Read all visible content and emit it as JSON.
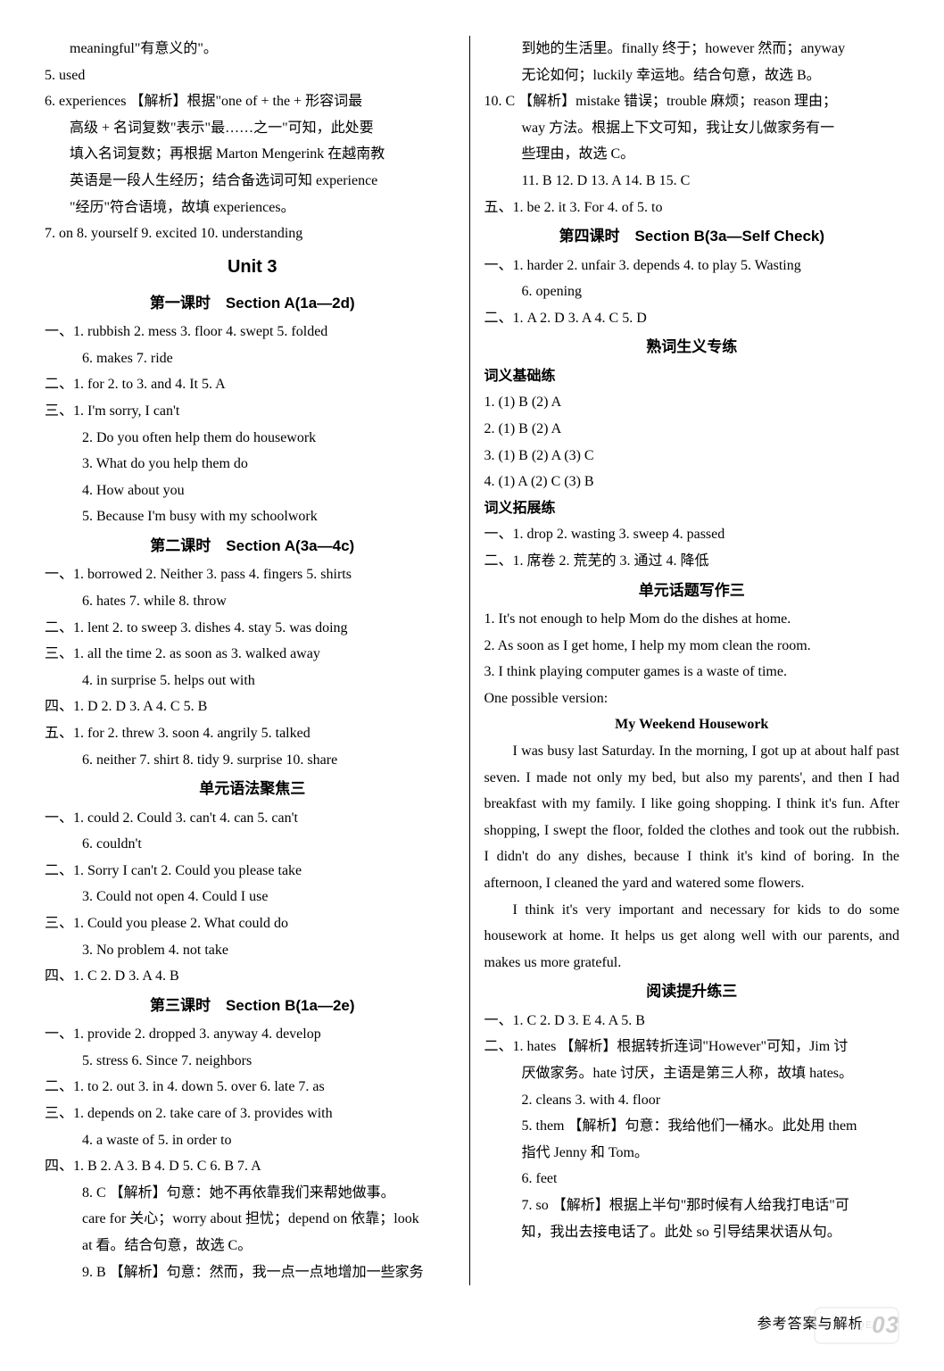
{
  "left": {
    "l01": "meaningful\"有意义的\"。",
    "l02": "5. used",
    "l03": "6. experiences  【解析】根据\"one of + the + 形容词最",
    "l04": "高级 + 名词复数\"表示\"最……之一\"可知，此处要",
    "l05": "填入名词复数；再根据 Marton Mengerink 在越南教",
    "l06": "英语是一段人生经历；结合备选词可知 experience",
    "l07": "\"经历\"符合语境，故填 experiences。",
    "l08": "7. on   8. yourself   9. excited   10. understanding",
    "u3": "Unit 3",
    "s1": "第一课时　Section A(1a—2d)",
    "l09": "一、1. rubbish   2. mess   3. floor   4. swept   5. folded",
    "l10": "6. makes   7. ride",
    "l11": "二、1. for   2. to   3. and   4. It   5. A",
    "l12": "三、1. I'm sorry, I can't",
    "l13": "2. Do you often help them do housework",
    "l14": "3. What do you help them do",
    "l15": "4. How about you",
    "l16": "5. Because I'm busy with my schoolwork",
    "s2": "第二课时　Section A(3a—4c)",
    "l17": "一、1. borrowed   2. Neither   3. pass   4. fingers   5. shirts",
    "l18": "6. hates   7. while   8. throw",
    "l19": "二、1. lent   2. to sweep   3. dishes   4. stay   5. was doing",
    "l20": "三、1. all the time   2. as soon as   3. walked away",
    "l21": "4. in surprise   5. helps out with",
    "l22": "四、1. D   2. D   3. A   4. C   5. B",
    "l23": "五、1. for   2. threw   3. soon   4. angrily   5. talked",
    "l24": "6. neither   7. shirt   8. tidy   9. surprise   10. share",
    "s3": "单元语法聚焦三",
    "l25": "一、1. could   2. Could   3. can't   4. can   5. can't",
    "l26": "6. couldn't",
    "l27": "二、1. Sorry   I can't   2. Could you please take",
    "l28": "3. Could   not open   4. Could I use",
    "l29": "三、1. Could you please   2. What could   do",
    "l30": "3. No problem   4. not take",
    "l31": "四、1. C   2. D   3. A   4. B",
    "s4": "第三课时　Section B(1a—2e)",
    "l32": "一、1. provide   2. dropped   3. anyway   4. develop",
    "l33": "5. stress   6. Since   7. neighbors",
    "l34": "二、1. to   2. out   3. in   4. down   5. over   6. late   7. as",
    "l35": "三、1. depends on   2. take care of   3. provides   with",
    "l36": "4. a waste of   5. in order to",
    "l37": "四、1. B   2. A   3. B   4. D   5. C   6. B   7. A",
    "l38": "8. C  【解析】句意：她不再依靠我们来帮她做事。",
    "l39": "care for 关心；worry about 担忧；depend on 依靠；look",
    "l40": "at 看。结合句意，故选 C。",
    "l41": "9. B  【解析】句意：然而，我一点一点地增加一些家务"
  },
  "right": {
    "r01": "到她的生活里。finally 终于；however 然而；anyway",
    "r02": "无论如何；luckily 幸运地。结合句意，故选 B。",
    "r03": "10. C  【解析】mistake 错误；trouble 麻烦；reason 理由；",
    "r04": "way 方法。根据上下文可知，我让女儿做家务有一",
    "r05": "些理由，故选 C。",
    "r06": "11. B   12. D   13. A   14. B   15. C",
    "r07": "五、1. be   2. it   3. For   4. of   5. to",
    "s5": "第四课时　Section B(3a—Self Check)",
    "r08": "一、1. harder   2. unfair   3. depends   4. to play   5. Wasting",
    "r09": "6. opening",
    "r10": "二、1. A   2. D   3. A   4. C   5. D",
    "s6": "熟词生义专练",
    "r11": "词义基础练",
    "r12": "1. (1) B    (2) A",
    "r13": "2. (1) B    (2) A",
    "r14": "3. (1) B    (2) A    (3) C",
    "r15": "4. (1) A    (2) C    (3) B",
    "r16": "词义拓展练",
    "r17": "一、1. drop   2. wasting   3. sweep   4. passed",
    "r18": "二、1. 席卷   2. 荒芜的   3. 通过   4. 降低",
    "s7": "单元话题写作三",
    "r19": "1. It's not enough to help Mom do the dishes at home.",
    "r20": "2. As soon as I get home, I help my mom clean the room.",
    "r21": "3. I think playing computer games is a waste of time.",
    "r22": "One possible version:",
    "essay_title": "My Weekend Housework",
    "p1": "I was busy last Saturday. In the morning, I got up at about half past seven. I made not only my bed, but also my parents', and then I had breakfast with my family. I like going shopping. I think it's fun. After shopping, I swept the floor, folded the clothes and took out the rubbish. I didn't do any dishes, because I think it's kind of boring. In the afternoon, I cleaned the yard and watered some flowers.",
    "p2": "I think it's very important and necessary for kids to do some housework at home. It helps us get along well with our parents, and makes us more grateful.",
    "s8": "阅读提升练三",
    "r23": "一、1. C   2. D   3. E   4. A   5. B",
    "r24": "二、1. hates  【解析】根据转折连词\"However\"可知，Jim 讨",
    "r25": "厌做家务。hate 讨厌，主语是第三人称，故填 hates。",
    "r26": "2. cleans   3. with   4. floor",
    "r27": "5. them  【解析】句意：我给他们一桶水。此处用 them",
    "r28": "指代 Jenny 和 Tom。",
    "r29": "6. feet",
    "r30": "7. so  【解析】根据上半句\"那时候有人给我打电话\"可",
    "r31": "知，我出去接电话了。此处 so 引导结果状语从句。"
  },
  "footer": {
    "label": "参考答案与解析",
    "page": "03"
  }
}
